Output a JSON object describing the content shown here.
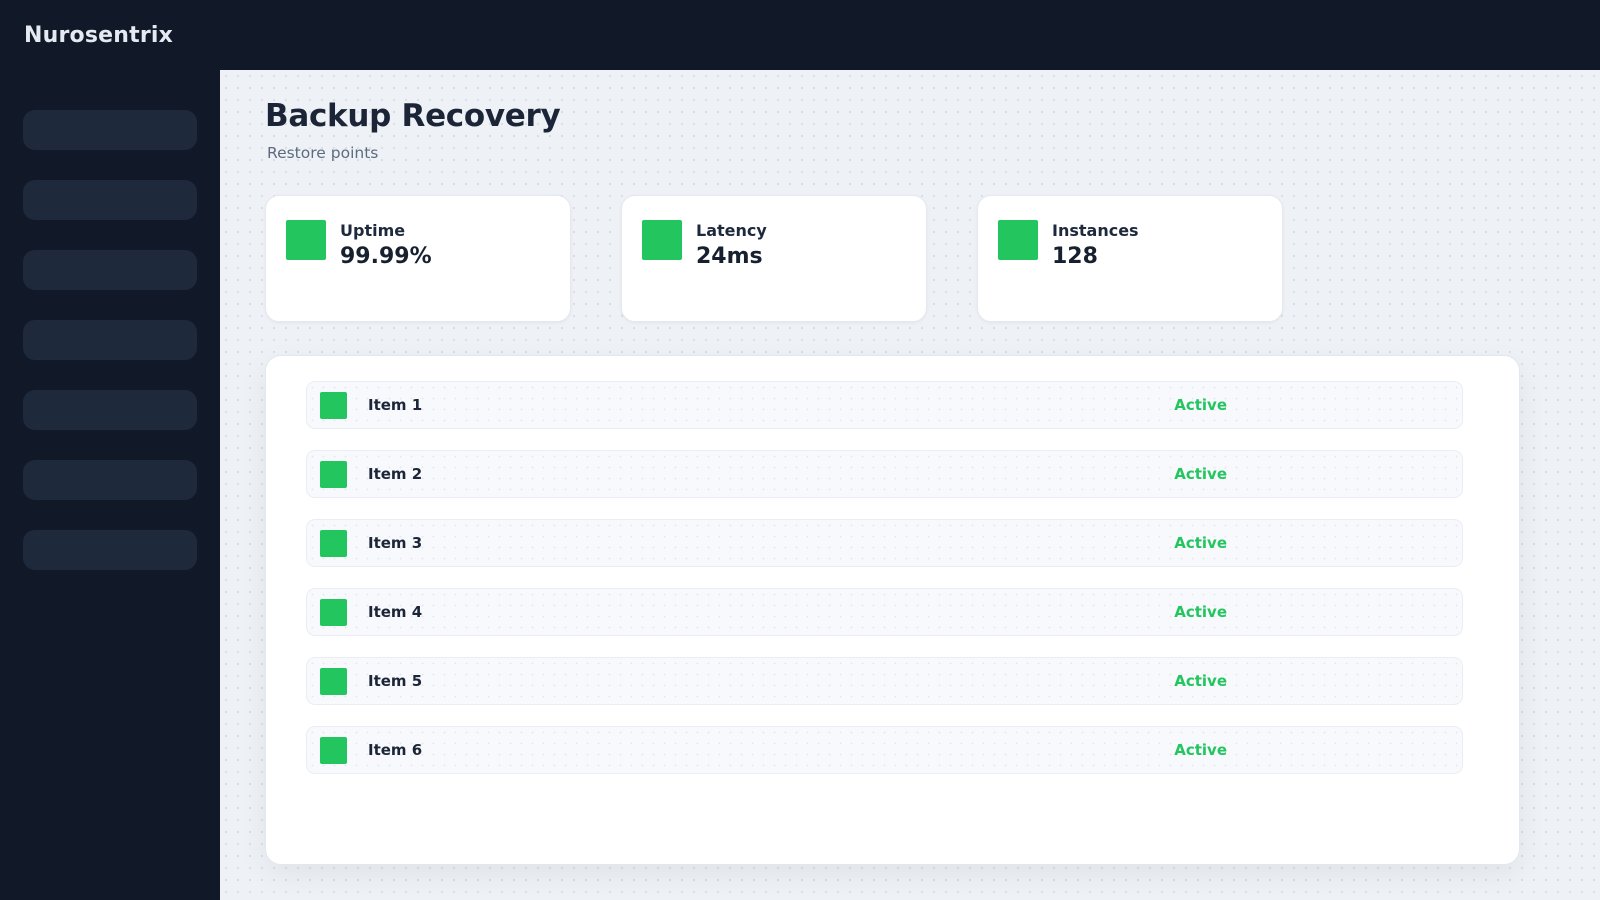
{
  "brand": "Nurosentrix",
  "page": {
    "title": "Backup Recovery",
    "subtitle": "Restore points"
  },
  "sidebar": {
    "nav_placeholder_count": 7
  },
  "stats": [
    {
      "icon": "green-square-icon",
      "label": "Uptime",
      "value": "99.99%"
    },
    {
      "icon": "green-square-icon",
      "label": "Latency",
      "value": "24ms"
    },
    {
      "icon": "green-square-icon",
      "label": "Instances",
      "value": "128"
    }
  ],
  "items": [
    {
      "icon": "green-square-icon",
      "name": "Item 1",
      "status": "Active"
    },
    {
      "icon": "green-square-icon",
      "name": "Item 2",
      "status": "Active"
    },
    {
      "icon": "green-square-icon",
      "name": "Item 3",
      "status": "Active"
    },
    {
      "icon": "green-square-icon",
      "name": "Item 4",
      "status": "Active"
    },
    {
      "icon": "green-square-icon",
      "name": "Item 5",
      "status": "Active"
    },
    {
      "icon": "green-square-icon",
      "name": "Item 6",
      "status": "Active"
    }
  ],
  "colors": {
    "accent_green": "#22c55e",
    "sidebar_bg": "#111827",
    "skeleton_bg": "#1e293b",
    "main_bg": "#eef1f5",
    "title_text": "#1b2537"
  }
}
